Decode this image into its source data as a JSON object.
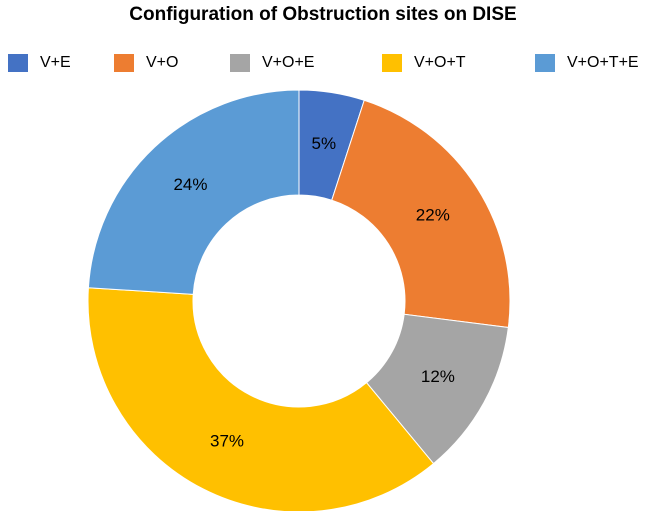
{
  "chart_data": {
    "type": "pie",
    "subtype": "donut",
    "title": "Configuration of Obstruction sites on DISE",
    "legend_position": "top",
    "categories": [
      "V+E",
      "V+O",
      "V+O+E",
      "V+O+T",
      "V+O+T+E"
    ],
    "values": [
      5,
      22,
      12,
      37,
      24
    ],
    "labels": [
      "5%",
      "22%",
      "12%",
      "37%",
      "24%"
    ],
    "colors": [
      "#4472C4",
      "#ED7D31",
      "#A5A5A5",
      "#FFC000",
      "#5B9BD5"
    ]
  }
}
